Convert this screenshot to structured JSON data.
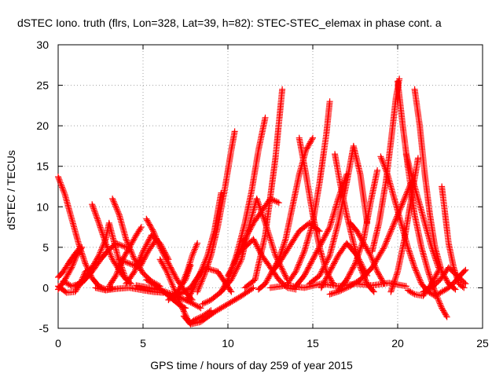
{
  "chart_data": {
    "type": "scatter",
    "title": "dSTEC Iono. truth (flrs, Lon=328, Lat=39, h=82): STEC-STEC_elemax in phase cont. a",
    "xlabel": "GPS time / hours of day 259 of year 2015",
    "ylabel": "dSTEC  / TECUs",
    "xlim": [
      0,
      25
    ],
    "ylim": [
      -5,
      30
    ],
    "xticks": [
      "0",
      "5",
      "10",
      "15",
      "20",
      "25"
    ],
    "yticks": [
      "-5",
      "0",
      "5",
      "10",
      "15",
      "20",
      "25",
      "30"
    ],
    "grid": true,
    "marker": "+",
    "marker_color": "#ff0000",
    "series": [
      {
        "x": [
          0.0,
          0.4,
          0.8,
          1.2,
          1.6,
          2.0,
          2.4,
          2.8,
          3.2
        ],
        "y": [
          13.7,
          11.5,
          8.5,
          5.5,
          3.0,
          1.2,
          0.2,
          -0.2,
          0.0
        ]
      },
      {
        "x": [
          0.0,
          0.5,
          1.0,
          1.3,
          1.6,
          2.0
        ],
        "y": [
          0.2,
          -0.6,
          -0.5,
          0.5,
          2.0,
          2.5
        ]
      },
      {
        "x": [
          0.0,
          0.3,
          0.6,
          1.0,
          1.3
        ],
        "y": [
          1.3,
          2.0,
          3.0,
          4.2,
          5.0
        ]
      },
      {
        "x": [
          0.0,
          0.4,
          0.8,
          1.1,
          1.4
        ],
        "y": [
          -0.2,
          1.0,
          2.5,
          4.0,
          5.0
        ]
      },
      {
        "x": [
          0.3,
          0.8,
          1.4,
          2.0,
          2.5,
          2.9,
          3.4,
          4.0
        ],
        "y": [
          0.8,
          0.2,
          0.6,
          2.0,
          3.5,
          4.5,
          5.5,
          5.0
        ]
      },
      {
        "x": [
          1.0,
          1.5,
          2.0,
          2.4,
          2.8,
          3.0,
          3.5,
          4.0
        ],
        "y": [
          0.2,
          1.0,
          2.5,
          4.0,
          6.0,
          8.0,
          4.0,
          1.0
        ]
      },
      {
        "x": [
          2.0,
          2.4,
          2.8,
          3.2,
          3.8,
          4.3
        ],
        "y": [
          10.3,
          8.0,
          5.5,
          3.5,
          1.5,
          0.5
        ]
      },
      {
        "x": [
          3.2,
          3.6,
          4.0,
          4.5,
          5.0,
          5.5,
          6.0
        ],
        "y": [
          11.0,
          9.0,
          6.0,
          3.5,
          1.8,
          0.8,
          0.2
        ]
      },
      {
        "x": [
          3.0,
          3.4,
          3.8,
          4.2,
          4.6,
          4.9
        ],
        "y": [
          0.2,
          1.5,
          3.5,
          5.0,
          6.5,
          7.5
        ]
      },
      {
        "x": [
          2.2,
          2.8,
          3.5,
          4.2,
          5.0,
          5.6,
          6.2
        ],
        "y": [
          0.0,
          -0.3,
          -0.1,
          0.0,
          -0.3,
          -0.5,
          -0.6
        ]
      },
      {
        "x": [
          3.6,
          4.2,
          4.8,
          5.3,
          5.8
        ],
        "y": [
          3.5,
          3.0,
          2.5,
          4.5,
          6.0
        ]
      },
      {
        "x": [
          4.0,
          4.5,
          5.0,
          5.5,
          6.0,
          6.5
        ],
        "y": [
          0.5,
          2.0,
          4.5,
          6.5,
          5.5,
          3.5
        ]
      },
      {
        "x": [
          5.2,
          5.6,
          6.0,
          6.5,
          7.0,
          7.5,
          7.9
        ],
        "y": [
          8.5,
          7.0,
          5.0,
          3.0,
          1.0,
          -0.5,
          -1.5
        ]
      },
      {
        "x": [
          5.2,
          5.8,
          6.4,
          6.8,
          7.2,
          7.5
        ],
        "y": [
          1.0,
          0.2,
          -0.8,
          -1.5,
          -2.2,
          -2.5
        ]
      },
      {
        "x": [
          4.6,
          5.4,
          6.2,
          7.0,
          7.8,
          8.4
        ],
        "y": [
          0.3,
          0.0,
          -0.4,
          -1.0,
          -1.8,
          -2.5
        ]
      },
      {
        "x": [
          6.0,
          6.4,
          6.8,
          7.2,
          7.6,
          7.8,
          8.0,
          8.5,
          9.0
        ],
        "y": [
          3.5,
          2.0,
          0.0,
          -2.0,
          -3.8,
          -4.4,
          -4.0,
          -3.5,
          -2.8
        ]
      },
      {
        "x": [
          7.4,
          7.8,
          8.4,
          9.2,
          10.0,
          10.8,
          11.5
        ],
        "y": [
          -3.5,
          -4.5,
          -4.2,
          -3.0,
          -2.0,
          -1.0,
          0.0
        ]
      },
      {
        "x": [
          6.8,
          7.2,
          7.6,
          7.9,
          8.2
        ],
        "y": [
          -1.5,
          0.0,
          2.0,
          4.0,
          5.5
        ]
      },
      {
        "x": [
          6.5,
          7.0,
          7.5,
          7.8
        ],
        "y": [
          -1.5,
          -0.5,
          1.0,
          2.8
        ]
      },
      {
        "x": [
          7.6,
          8.0,
          8.4,
          8.8,
          9.2,
          9.6
        ],
        "y": [
          -1.5,
          0.0,
          2.0,
          4.0,
          7.0,
          11.7
        ]
      },
      {
        "x": [
          7.0,
          7.8,
          8.6,
          9.4,
          10.2
        ],
        "y": [
          -1.0,
          0.0,
          2.5,
          2.0,
          -0.5
        ]
      },
      {
        "x": [
          8.2,
          8.6,
          9.0,
          9.4,
          9.8,
          10.2,
          10.4
        ],
        "y": [
          -0.5,
          1.5,
          4.0,
          7.5,
          12.0,
          17.0,
          19.3
        ]
      },
      {
        "x": [
          8.5,
          9.0,
          9.6,
          10.2,
          10.8,
          11.3,
          11.7,
          12.2,
          12.8,
          13.5
        ],
        "y": [
          -2.0,
          -1.5,
          -0.5,
          1.0,
          3.5,
          8.0,
          11.0,
          8.0,
          4.0,
          1.0
        ]
      },
      {
        "x": [
          9.6,
          10.0,
          10.5,
          11.0,
          11.4,
          11.8,
          12.2
        ],
        "y": [
          -0.5,
          1.0,
          4.0,
          8.0,
          12.0,
          17.0,
          21.0
        ]
      },
      {
        "x": [
          10.0,
          10.5,
          11.0,
          11.5,
          12.0,
          12.5,
          13.0
        ],
        "y": [
          1.5,
          3.5,
          6.0,
          8.0,
          9.5,
          11.0,
          10.5
        ]
      },
      {
        "x": [
          11.0,
          11.6,
          12.2,
          12.8,
          13.2
        ],
        "y": [
          0.0,
          1.0,
          6.5,
          16.0,
          24.5
        ]
      },
      {
        "x": [
          10.5,
          11.0,
          11.5,
          12.0,
          12.5,
          13.0,
          13.5,
          14.0
        ],
        "y": [
          4.0,
          5.0,
          6.0,
          4.0,
          2.5,
          1.0,
          0.0,
          -0.2
        ]
      },
      {
        "x": [
          11.8,
          12.2,
          12.6,
          13.0,
          13.4,
          13.8,
          14.2,
          14.6,
          15.0
        ],
        "y": [
          -0.2,
          0.5,
          2.0,
          3.5,
          6.0,
          10.0,
          14.0,
          17.0,
          18.5
        ]
      },
      {
        "x": [
          14.2,
          14.6,
          15.0,
          15.4,
          15.8,
          16.2
        ],
        "y": [
          18.5,
          14.0,
          9.0,
          5.0,
          2.0,
          0.5
        ]
      },
      {
        "x": [
          12.6,
          13.0,
          13.6,
          14.2,
          14.8,
          15.4
        ],
        "y": [
          2.0,
          3.0,
          5.0,
          7.0,
          8.0,
          7.0
        ]
      },
      {
        "x": [
          12.5,
          13.5,
          14.5,
          15.5,
          16.5,
          17.5,
          18.5,
          19.5,
          20.5
        ],
        "y": [
          0.0,
          0.3,
          0.0,
          0.5,
          0.2,
          0.5,
          0.3,
          0.6,
          0.2
        ]
      },
      {
        "x": [
          13.5,
          14.0,
          14.5,
          15.0,
          15.4,
          15.8,
          16.0
        ],
        "y": [
          0.5,
          2.0,
          4.5,
          8.0,
          13.0,
          19.0,
          23.0
        ]
      },
      {
        "x": [
          14.0,
          14.5,
          15.0,
          15.5,
          16.0,
          16.5,
          17.0
        ],
        "y": [
          0.2,
          1.5,
          3.5,
          5.5,
          7.5,
          11.0,
          14.0
        ]
      },
      {
        "x": [
          14.8,
          15.4,
          16.0,
          16.5,
          17.0,
          17.4,
          17.8,
          18.2
        ],
        "y": [
          0.5,
          1.5,
          4.0,
          8.0,
          13.0,
          17.5,
          14.0,
          8.0
        ]
      },
      {
        "x": [
          16.3,
          16.6,
          17.0,
          17.4,
          17.8,
          18.2,
          18.6
        ],
        "y": [
          16.5,
          13.0,
          9.0,
          5.5,
          2.5,
          0.5,
          -0.5
        ]
      },
      {
        "x": [
          15.5,
          16.0,
          16.5,
          17.0,
          17.6,
          18.2
        ],
        "y": [
          0.0,
          2.0,
          4.0,
          5.5,
          4.0,
          1.5
        ]
      },
      {
        "x": [
          16.5,
          17.0,
          17.5,
          18.0,
          18.4,
          18.8
        ],
        "y": [
          -0.3,
          1.0,
          3.0,
          6.0,
          10.5,
          14.5
        ]
      },
      {
        "x": [
          16.0,
          16.6,
          17.2,
          17.8,
          18.5,
          19.2,
          20.0,
          20.8
        ],
        "y": [
          -0.8,
          -0.4,
          0.2,
          1.0,
          2.5,
          5.0,
          9.0,
          13.0
        ]
      },
      {
        "x": [
          17.2,
          17.6,
          18.0,
          18.4,
          18.8,
          19.2
        ],
        "y": [
          8.0,
          7.0,
          5.5,
          4.0,
          2.0,
          0.5
        ]
      },
      {
        "x": [
          19.0,
          19.4,
          19.8,
          20.2,
          20.6,
          21.0,
          21.4,
          21.8,
          22.2
        ],
        "y": [
          16.2,
          14.0,
          11.0,
          8.0,
          5.0,
          2.5,
          0.5,
          -0.5,
          -1.0
        ]
      },
      {
        "x": [
          18.5,
          18.9,
          19.3,
          19.6,
          19.9,
          20.1
        ],
        "y": [
          4.5,
          8.0,
          13.0,
          18.0,
          23.5,
          25.8
        ]
      },
      {
        "x": [
          20.0,
          20.3,
          20.6,
          21.0,
          21.4,
          21.8,
          22.2,
          22.6,
          22.9
        ],
        "y": [
          25.5,
          20.0,
          15.0,
          9.0,
          5.0,
          2.0,
          -0.5,
          -2.5,
          -3.6
        ]
      },
      {
        "x": [
          19.6,
          20.0,
          20.4,
          20.8,
          21.2
        ],
        "y": [
          -0.5,
          2.0,
          6.0,
          11.0,
          16.0
        ]
      },
      {
        "x": [
          21.0,
          21.3,
          21.6,
          21.9,
          22.2,
          22.6,
          23.0,
          23.4
        ],
        "y": [
          24.5,
          20.0,
          14.0,
          9.0,
          5.0,
          2.0,
          0.5,
          -0.2
        ]
      },
      {
        "x": [
          20.5,
          20.8,
          21.2,
          21.6,
          22.0,
          22.4
        ],
        "y": [
          16.5,
          14.0,
          11.0,
          8.0,
          5.0,
          2.5
        ]
      },
      {
        "x": [
          22.6,
          22.8,
          23.0,
          23.3,
          23.6,
          23.9
        ],
        "y": [
          12.5,
          9.0,
          5.5,
          2.5,
          0.5,
          0.0
        ]
      },
      {
        "x": [
          21.5,
          22.0,
          22.5,
          23.0,
          23.5,
          24.0
        ],
        "y": [
          -0.5,
          0.0,
          1.0,
          2.5,
          1.5,
          0.5
        ]
      },
      {
        "x": [
          22.2,
          22.6,
          23.0,
          23.4,
          23.8,
          24.0
        ],
        "y": [
          -1.0,
          -0.5,
          0.0,
          0.8,
          1.8,
          2.2
        ]
      },
      {
        "x": [
          20.6,
          21.0,
          21.5,
          22.0,
          22.5
        ],
        "y": [
          -0.3,
          -0.8,
          -1.0,
          0.5,
          2.5
        ]
      }
    ]
  }
}
